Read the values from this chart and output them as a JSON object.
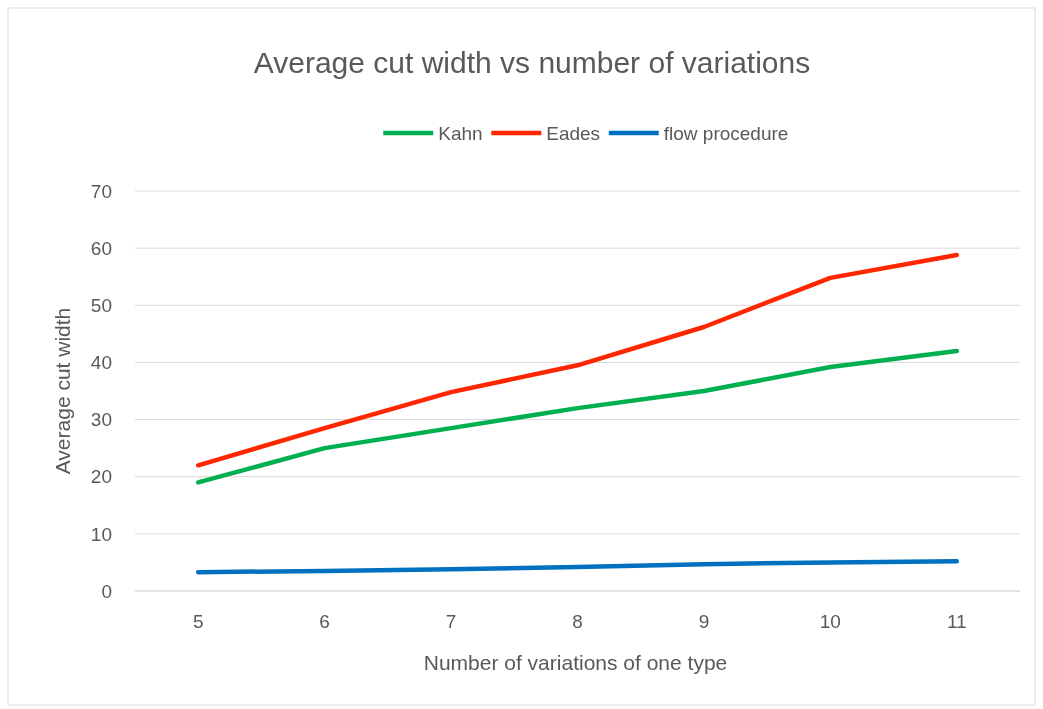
{
  "chart_data": {
    "type": "line",
    "title": "Average cut width vs number of variations",
    "xlabel": "Number of variations of one type",
    "ylabel": "Average cut width",
    "categories": [
      "5",
      "6",
      "7",
      "8",
      "9",
      "10",
      "11"
    ],
    "series": [
      {
        "name": "Kahn",
        "color": "#00b050",
        "values": [
          19,
          25,
          28.5,
          32,
          35,
          39.2,
          42
        ]
      },
      {
        "name": "Eades",
        "color": "#ff2600",
        "values": [
          22,
          28.5,
          34.8,
          39.5,
          46.2,
          54.8,
          58.8
        ]
      },
      {
        "name": "flow procedure",
        "color": "#0070c0",
        "values": [
          3.3,
          3.5,
          3.8,
          4.2,
          4.7,
          5,
          5.2
        ]
      }
    ],
    "ylim": [
      0,
      70
    ],
    "yticks": [
      0,
      10,
      20,
      30,
      40,
      50,
      60,
      70
    ],
    "grid": "y",
    "legend": "top",
    "line_style": "solid"
  }
}
